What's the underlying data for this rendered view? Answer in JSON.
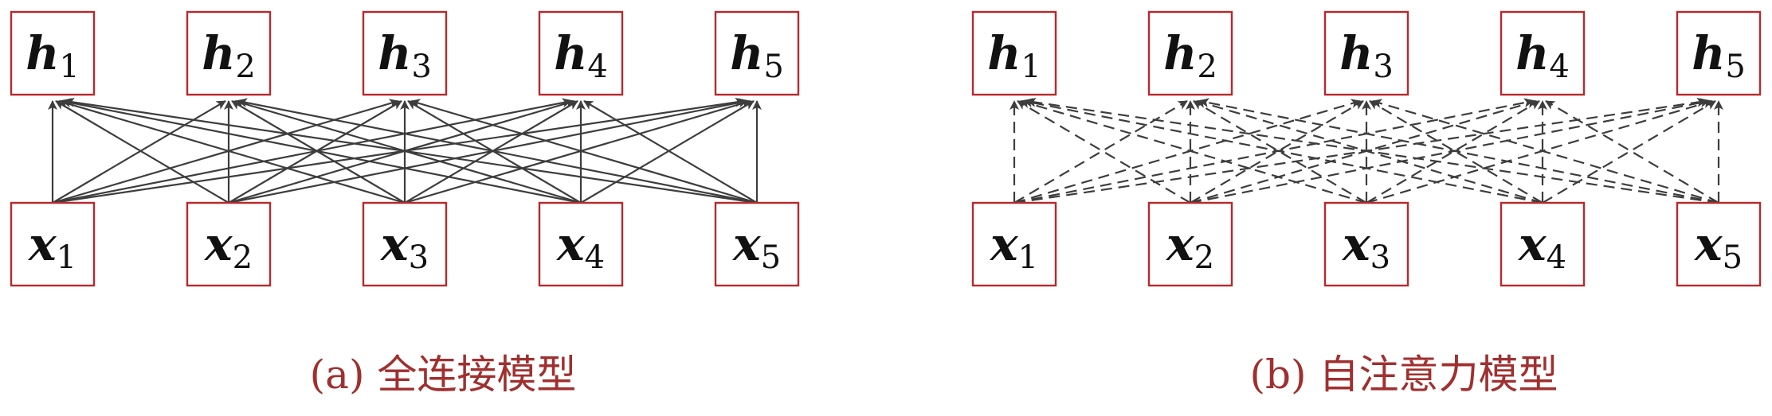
{
  "colors": {
    "box_border": "#b8282d",
    "edge": "#3d3d3d",
    "caption": "#a0302f",
    "label": "#111111"
  },
  "panels": [
    {
      "id": "a",
      "edge_style": "solid",
      "caption": "(a) 全连接模型",
      "top_nodes": [
        {
          "var": "h",
          "sub": "1"
        },
        {
          "var": "h",
          "sub": "2"
        },
        {
          "var": "h",
          "sub": "3"
        },
        {
          "var": "h",
          "sub": "4"
        },
        {
          "var": "h",
          "sub": "5"
        }
      ],
      "bottom_nodes": [
        {
          "var": "x",
          "sub": "1"
        },
        {
          "var": "x",
          "sub": "2"
        },
        {
          "var": "x",
          "sub": "3"
        },
        {
          "var": "x",
          "sub": "4"
        },
        {
          "var": "x",
          "sub": "5"
        }
      ]
    },
    {
      "id": "b",
      "edge_style": "dashed",
      "caption": "(b) 自注意力模型",
      "top_nodes": [
        {
          "var": "h",
          "sub": "1"
        },
        {
          "var": "h",
          "sub": "2"
        },
        {
          "var": "h",
          "sub": "3"
        },
        {
          "var": "h",
          "sub": "4"
        },
        {
          "var": "h",
          "sub": "5"
        }
      ],
      "bottom_nodes": [
        {
          "var": "x",
          "sub": "1"
        },
        {
          "var": "x",
          "sub": "2"
        },
        {
          "var": "x",
          "sub": "3"
        },
        {
          "var": "x",
          "sub": "4"
        },
        {
          "var": "x",
          "sub": "5"
        }
      ]
    }
  ]
}
